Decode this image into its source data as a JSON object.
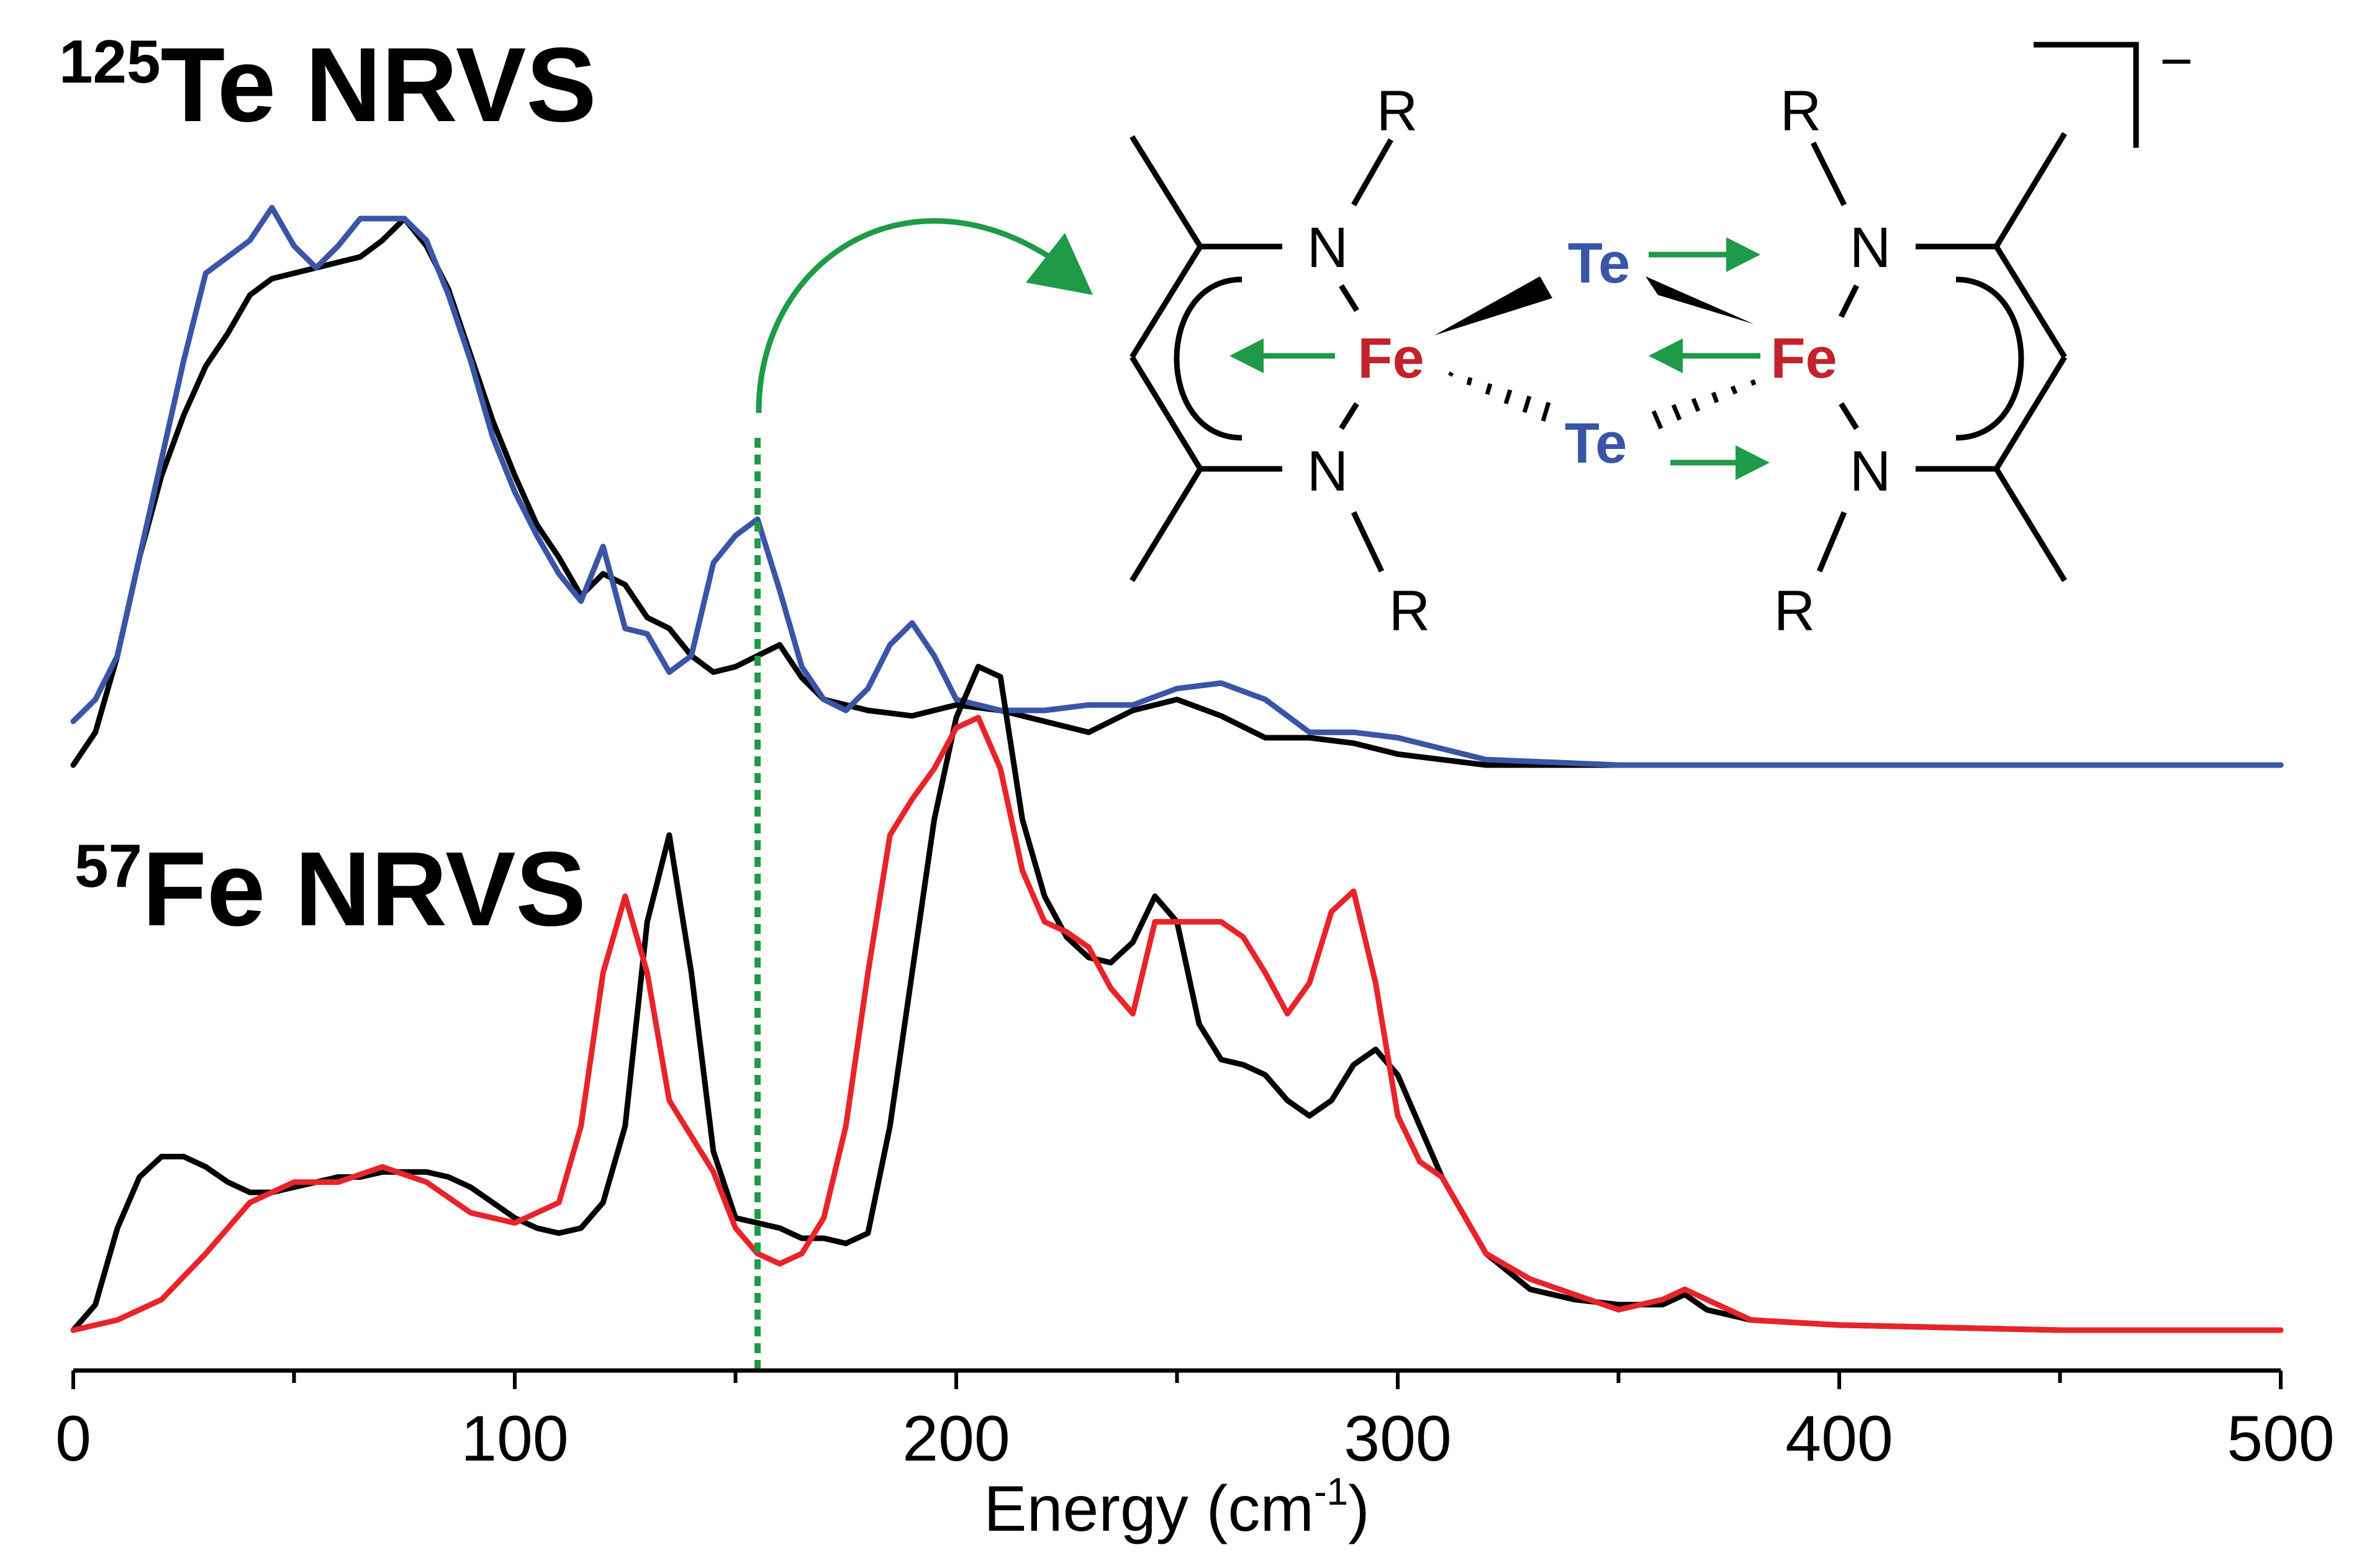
{
  "chart_data": [
    {
      "type": "line",
      "panel_title": {
        "isotope": "125",
        "text": "Te NRVS"
      },
      "xlim": [
        0,
        500
      ],
      "series": [
        {
          "color": "#000000",
          "x": [
            0,
            5,
            10,
            15,
            20,
            25,
            30,
            35,
            40,
            45,
            50,
            55,
            60,
            65,
            70,
            75,
            80,
            85,
            90,
            95,
            100,
            105,
            110,
            115,
            120,
            125,
            130,
            135,
            140,
            145,
            150,
            155,
            160,
            165,
            170,
            180,
            190,
            200,
            210,
            220,
            230,
            240,
            250,
            260,
            270,
            280,
            290,
            300,
            320,
            350,
            400,
            450,
            500
          ],
          "y": [
            0.0,
            0.06,
            0.2,
            0.38,
            0.53,
            0.64,
            0.73,
            0.79,
            0.86,
            0.89,
            0.9,
            0.91,
            0.92,
            0.93,
            0.96,
            1.0,
            0.95,
            0.87,
            0.75,
            0.63,
            0.53,
            0.44,
            0.38,
            0.31,
            0.35,
            0.33,
            0.27,
            0.25,
            0.2,
            0.17,
            0.18,
            0.2,
            0.22,
            0.16,
            0.12,
            0.1,
            0.09,
            0.11,
            0.1,
            0.08,
            0.06,
            0.1,
            0.12,
            0.09,
            0.05,
            0.05,
            0.04,
            0.02,
            0.0,
            0.0,
            0.0,
            0.0,
            0.0
          ]
        },
        {
          "color": "#3a55a5",
          "x": [
            0,
            5,
            10,
            15,
            20,
            25,
            30,
            35,
            40,
            45,
            50,
            55,
            60,
            65,
            70,
            75,
            80,
            85,
            90,
            95,
            100,
            105,
            110,
            115,
            120,
            125,
            130,
            135,
            140,
            145,
            150,
            155,
            160,
            165,
            170,
            175,
            180,
            185,
            190,
            195,
            200,
            210,
            220,
            230,
            240,
            250,
            260,
            270,
            280,
            290,
            300,
            320,
            350,
            400,
            500
          ],
          "y": [
            0.08,
            0.12,
            0.2,
            0.38,
            0.56,
            0.74,
            0.9,
            0.93,
            0.96,
            1.02,
            0.95,
            0.91,
            0.95,
            1.0,
            1.0,
            1.0,
            0.96,
            0.86,
            0.74,
            0.6,
            0.5,
            0.42,
            0.35,
            0.3,
            0.4,
            0.25,
            0.24,
            0.17,
            0.2,
            0.37,
            0.42,
            0.45,
            0.32,
            0.18,
            0.12,
            0.1,
            0.14,
            0.22,
            0.26,
            0.2,
            0.12,
            0.1,
            0.1,
            0.11,
            0.11,
            0.14,
            0.15,
            0.12,
            0.06,
            0.06,
            0.05,
            0.01,
            0.0,
            0.0,
            0.0
          ]
        }
      ],
      "marker_line": {
        "x": 155,
        "color": "#1f9a48"
      }
    },
    {
      "type": "line",
      "panel_title": {
        "isotope": "57",
        "text": "Fe NRVS"
      },
      "xlim": [
        0,
        500
      ],
      "xticks": [
        0,
        100,
        200,
        300,
        400,
        500
      ],
      "xlabel": {
        "text": "Energy (cm",
        "superscript": "-1",
        "suffix": ")"
      },
      "series": [
        {
          "color": "#000000",
          "x": [
            0,
            5,
            10,
            15,
            20,
            25,
            30,
            35,
            40,
            45,
            50,
            55,
            60,
            65,
            70,
            75,
            80,
            85,
            90,
            95,
            100,
            105,
            110,
            115,
            120,
            125,
            130,
            135,
            140,
            145,
            150,
            155,
            160,
            165,
            170,
            175,
            180,
            185,
            190,
            195,
            200,
            205,
            210,
            215,
            220,
            225,
            230,
            235,
            240,
            245,
            250,
            255,
            260,
            265,
            270,
            275,
            280,
            285,
            290,
            295,
            300,
            305,
            310,
            320,
            330,
            340,
            350,
            360,
            365,
            370,
            380,
            400,
            450,
            500
          ],
          "y": [
            0.0,
            0.05,
            0.2,
            0.3,
            0.34,
            0.34,
            0.32,
            0.29,
            0.27,
            0.27,
            0.28,
            0.29,
            0.3,
            0.3,
            0.31,
            0.31,
            0.31,
            0.3,
            0.28,
            0.25,
            0.22,
            0.2,
            0.19,
            0.2,
            0.25,
            0.4,
            0.8,
            0.97,
            0.7,
            0.35,
            0.22,
            0.21,
            0.2,
            0.18,
            0.18,
            0.17,
            0.19,
            0.4,
            0.7,
            1.0,
            1.2,
            1.3,
            1.28,
            1.0,
            0.85,
            0.77,
            0.73,
            0.72,
            0.76,
            0.85,
            0.8,
            0.6,
            0.53,
            0.52,
            0.5,
            0.45,
            0.42,
            0.45,
            0.52,
            0.55,
            0.5,
            0.4,
            0.3,
            0.15,
            0.08,
            0.06,
            0.05,
            0.05,
            0.07,
            0.04,
            0.02,
            0.01,
            0.0,
            0.0
          ]
        },
        {
          "color": "#e8242b",
          "x": [
            0,
            10,
            20,
            30,
            40,
            50,
            60,
            70,
            80,
            90,
            100,
            110,
            115,
            120,
            125,
            130,
            135,
            140,
            145,
            150,
            155,
            160,
            165,
            170,
            175,
            180,
            185,
            190,
            195,
            200,
            205,
            210,
            215,
            220,
            225,
            230,
            235,
            240,
            245,
            250,
            255,
            260,
            265,
            270,
            275,
            280,
            285,
            290,
            295,
            300,
            305,
            310,
            320,
            330,
            340,
            350,
            360,
            365,
            370,
            380,
            400,
            450,
            500
          ],
          "y": [
            0.0,
            0.02,
            0.06,
            0.15,
            0.25,
            0.29,
            0.29,
            0.32,
            0.29,
            0.23,
            0.21,
            0.25,
            0.4,
            0.7,
            0.85,
            0.7,
            0.45,
            0.38,
            0.31,
            0.2,
            0.15,
            0.13,
            0.15,
            0.22,
            0.4,
            0.7,
            0.97,
            1.04,
            1.1,
            1.18,
            1.2,
            1.1,
            0.9,
            0.8,
            0.78,
            0.75,
            0.67,
            0.62,
            0.8,
            0.8,
            0.8,
            0.8,
            0.77,
            0.7,
            0.62,
            0.68,
            0.82,
            0.86,
            0.68,
            0.42,
            0.33,
            0.3,
            0.15,
            0.1,
            0.07,
            0.04,
            0.06,
            0.08,
            0.06,
            0.02,
            0.01,
            0.0,
            0.0
          ]
        }
      ],
      "marker_line": {
        "x": 155,
        "color": "#1f9a48"
      }
    }
  ],
  "structure": {
    "charge": "−",
    "substituent": "R",
    "nitrogen": "N",
    "iron": "Fe",
    "tellurium": "Te",
    "colors": {
      "fe": "#c4222a",
      "te": "#3a55a5",
      "arrow": "#1f9a48",
      "bond": "#000000"
    }
  }
}
